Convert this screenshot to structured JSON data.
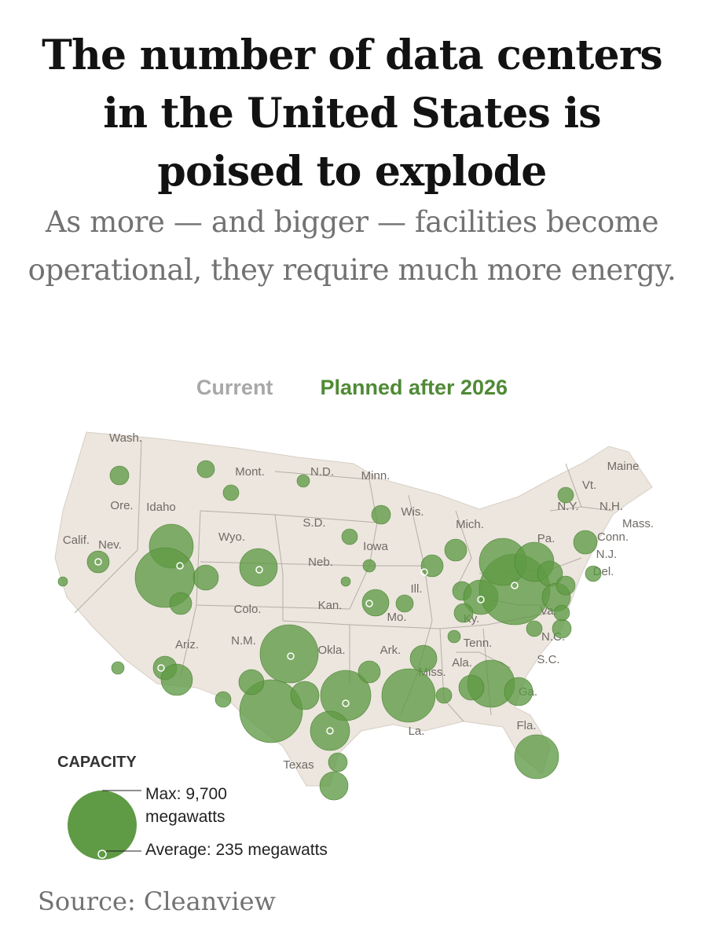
{
  "headline": "The number of data centers in the United States is poised to explode",
  "subheadline": "As more — and bigger — facilities become operational, they require much more energy.",
  "toggle": {
    "current_label": "Current",
    "planned_label": "Planned after 2026",
    "selected": "Planned after 2026",
    "inactive_color": "#a8a8a8",
    "active_color": "#4f8a36"
  },
  "map": {
    "land_color": "#ece6df",
    "border_color": "#b5aea6",
    "bubble_color": "#5f9a45",
    "state_labels": [
      "Wash.",
      "Ore.",
      "Calif.",
      "Nev.",
      "Idaho",
      "Mont.",
      "Wyo.",
      "Colo.",
      "Ariz.",
      "N.M.",
      "N.D.",
      "S.D.",
      "Neb.",
      "Kan.",
      "Okla.",
      "Texas",
      "Minn.",
      "Iowa",
      "Mo.",
      "Ark.",
      "La.",
      "Wis.",
      "Ill.",
      "Mich.",
      "Ky.",
      "Tenn.",
      "Miss.",
      "Ala.",
      "Ga.",
      "Fla.",
      "S.C.",
      "N.C.",
      "Va.",
      "Pa.",
      "N.Y.",
      "Vt.",
      "N.H.",
      "Maine",
      "Mass.",
      "Conn.",
      "N.J.",
      "Del."
    ]
  },
  "legend": {
    "title": "CAPACITY",
    "max_label": "Max: 9,700 megawatts",
    "max_mw": 9700,
    "average_label": "Average: 235 megawatts",
    "average_mw": 235
  },
  "source": "Source: Cleanview"
}
